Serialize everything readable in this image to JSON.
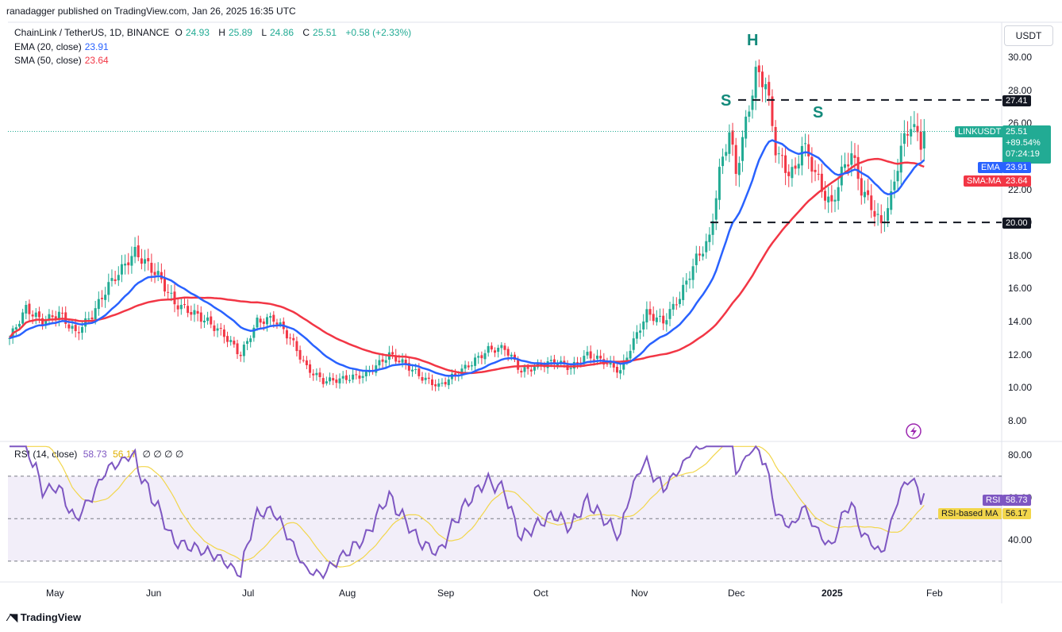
{
  "header": {
    "publisher": "ranadagger published on TradingView.com, Jan 26, 2025 16:35 UTC"
  },
  "legend": {
    "symbol": "ChainLink / TetherUS, 1D, BINANCE",
    "o_label": "O",
    "o": "24.93",
    "h_label": "H",
    "h": "25.89",
    "l_label": "L",
    "l": "24.86",
    "c_label": "C",
    "c": "25.51",
    "change": "+0.58 (+2.33%)",
    "ema_label": "EMA (20, close)",
    "ema_value": "23.91",
    "sma_label": "SMA (50, close)",
    "sma_value": "23.64"
  },
  "rsi_legend": {
    "label": "RSI (14, close)",
    "rsi": "58.73",
    "ma": "56.17",
    "extra": "∅ ∅ ∅ ∅"
  },
  "currency_button": "USDT",
  "brand": {
    "name": "TradingView"
  },
  "colors": {
    "up": "#22ab94",
    "down": "#f23645",
    "ema": "#2962ff",
    "sma": "#f23645",
    "rsi": "#7e57c2",
    "rsi_ma": "#f2d64b"
  },
  "price_tags": {
    "resistance": "27.41",
    "support": "20.00",
    "symbol": "LINKUSDT",
    "last": "25.51",
    "change": "+89.54%",
    "countdown": "07:24:19",
    "ema_tag": "EMA",
    "ema_value": "23.91",
    "sma_tag": "SMA:MA",
    "sma_value": "23.64",
    "rsi_tag": "RSI",
    "rsi_value": "58.73",
    "rsi_ma_tag": "RSI-based MA",
    "rsi_ma_value": "56.17"
  },
  "annotations": {
    "left_shoulder": "S",
    "head": "H",
    "right_shoulder": "S"
  },
  "chart_data": [
    {
      "type": "candlestick",
      "title": "ChainLink / TetherUS, 1D, BINANCE",
      "ylim": [
        7,
        31
      ],
      "yticks": [
        "8.00",
        "10.00",
        "12.00",
        "14.00",
        "16.00",
        "18.00",
        "20.00",
        "22.00",
        "24.00",
        "26.00",
        "28.00",
        "30.00"
      ],
      "x_ticks": [
        "May",
        "Jun",
        "Jul",
        "Aug",
        "Sep",
        "Oct",
        "Nov",
        "Dec",
        "2025",
        "Feb"
      ],
      "horizontal_lines": [
        27.41,
        20.0
      ],
      "close_anchors": [
        [
          0,
          13.0
        ],
        [
          5,
          14.8
        ],
        [
          10,
          14.0
        ],
        [
          15,
          14.5
        ],
        [
          20,
          13.3
        ],
        [
          25,
          14.4
        ],
        [
          30,
          16.2
        ],
        [
          38,
          18.2
        ],
        [
          45,
          16.8
        ],
        [
          50,
          15.1
        ],
        [
          55,
          14.6
        ],
        [
          60,
          14.0
        ],
        [
          65,
          13.2
        ],
        [
          70,
          12.0
        ],
        [
          75,
          14.0
        ],
        [
          80,
          14.2
        ],
        [
          85,
          13.0
        ],
        [
          90,
          11.2
        ],
        [
          95,
          10.4
        ],
        [
          100,
          10.5
        ],
        [
          108,
          10.8
        ],
        [
          115,
          12.0
        ],
        [
          120,
          11.4
        ],
        [
          125,
          10.6
        ],
        [
          130,
          10.1
        ],
        [
          135,
          10.8
        ],
        [
          140,
          11.5
        ],
        [
          145,
          12.3
        ],
        [
          150,
          12.4
        ],
        [
          155,
          11.0
        ],
        [
          160,
          11.3
        ],
        [
          165,
          11.6
        ],
        [
          170,
          11.2
        ],
        [
          175,
          12.0
        ],
        [
          180,
          11.6
        ],
        [
          185,
          11.0
        ],
        [
          188,
          12.4
        ],
        [
          193,
          14.5
        ],
        [
          198,
          14.0
        ],
        [
          203,
          15.5
        ],
        [
          208,
          17.8
        ],
        [
          212,
          19.0
        ],
        [
          215,
          23.0
        ],
        [
          218,
          25.5
        ],
        [
          220,
          23.0
        ],
        [
          223,
          26.0
        ],
        [
          226,
          29.0
        ],
        [
          229,
          28.5
        ],
        [
          232,
          24.5
        ],
        [
          235,
          23.2
        ],
        [
          238,
          23.0
        ],
        [
          240,
          24.8
        ],
        [
          243,
          23.5
        ],
        [
          246,
          22.0
        ],
        [
          249,
          21.0
        ],
        [
          252,
          23.0
        ],
        [
          255,
          24.2
        ],
        [
          258,
          22.0
        ],
        [
          261,
          21.0
        ],
        [
          264,
          19.8
        ],
        [
          267,
          21.5
        ],
        [
          270,
          24.5
        ],
        [
          273,
          26.0
        ],
        [
          276,
          24.8
        ],
        [
          277,
          25.51
        ]
      ],
      "series": [
        {
          "name": "EMA",
          "value_last": 23.91
        },
        {
          "name": "SMA",
          "value_last": 23.64
        }
      ]
    },
    {
      "type": "line",
      "title": "RSI (14, close)",
      "ylim": [
        20,
        85
      ],
      "yticks": [
        "40.00",
        "60.00",
        "80.00"
      ],
      "bands": [
        30,
        70
      ],
      "series": [
        {
          "name": "RSI",
          "value_last": 58.73
        },
        {
          "name": "RSI-based MA",
          "value_last": 56.17
        }
      ]
    }
  ]
}
